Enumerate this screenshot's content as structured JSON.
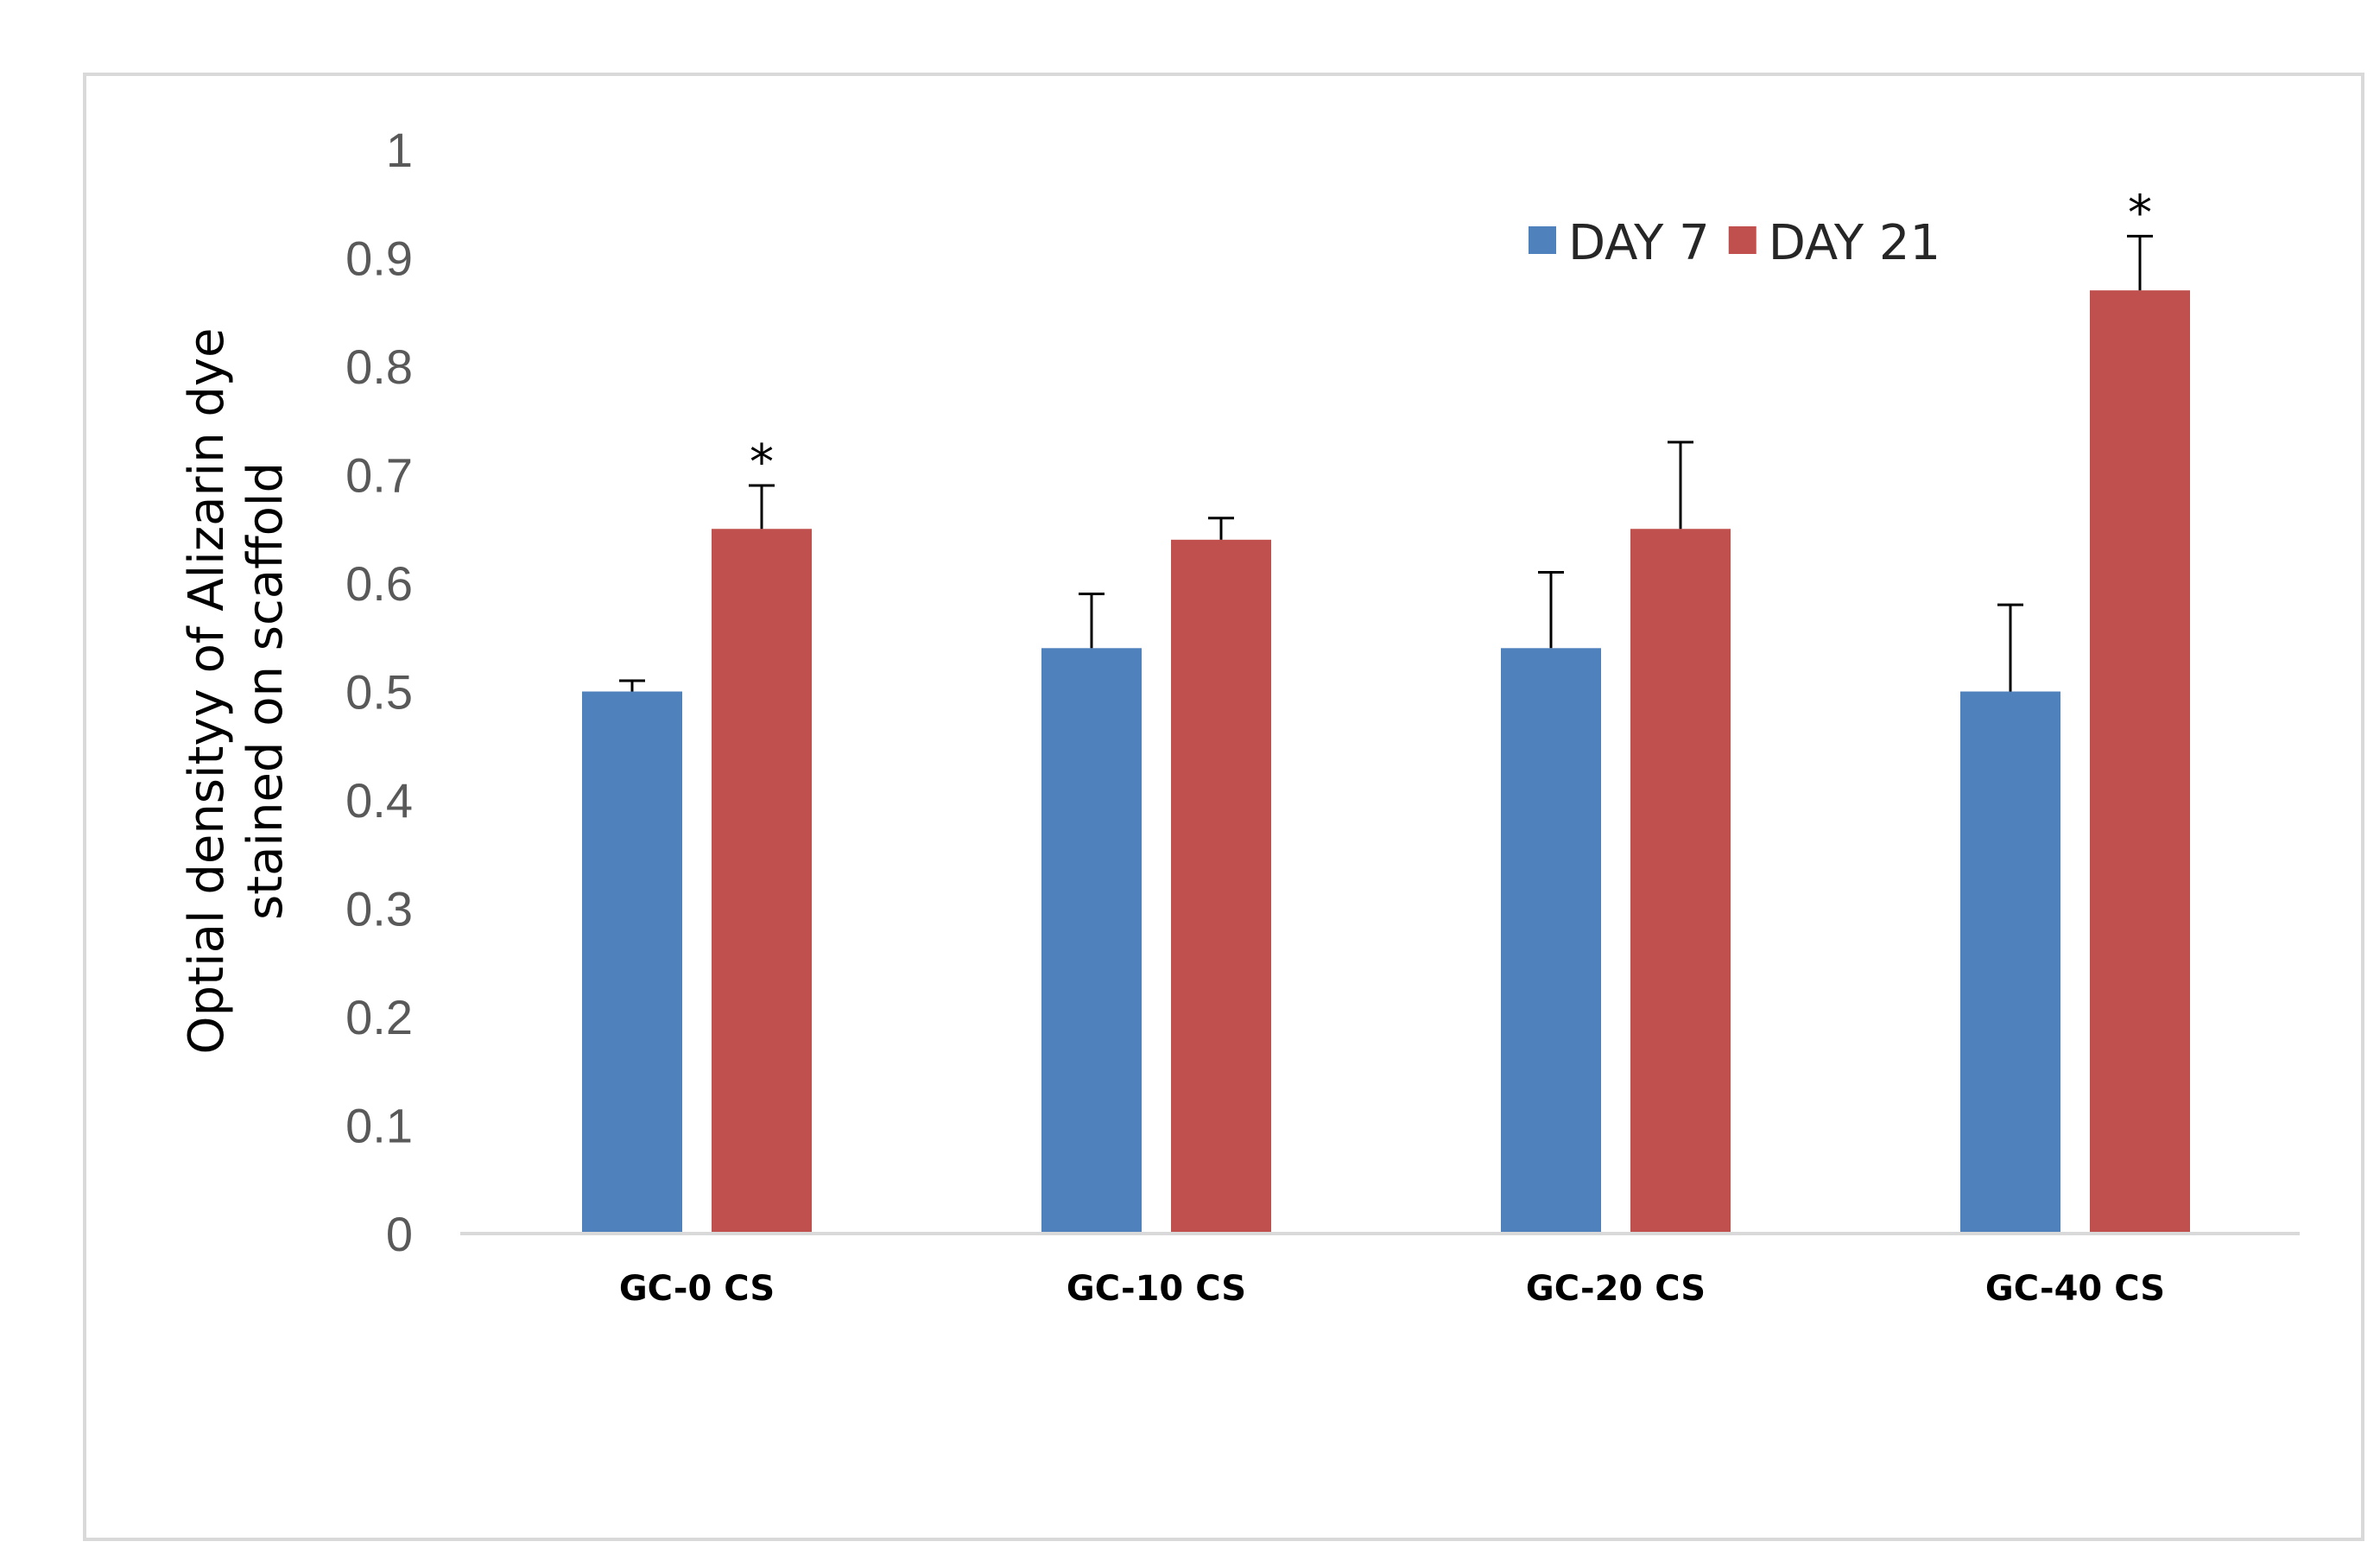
{
  "chart_data": {
    "type": "bar",
    "title": "",
    "xlabel": "",
    "ylabel_lines": [
      "Optial densityy of Alizarin dye",
      "stained on scaffold"
    ],
    "ylim": [
      0,
      1
    ],
    "yticks": [
      "0",
      "0.1",
      "0.2",
      "0.3",
      "0.4",
      "0.5",
      "0.6",
      "0.7",
      "0.8",
      "0.9",
      "1"
    ],
    "categories": [
      "GC-0 CS",
      "GC-10 CS",
      "GC-20 CS",
      "GC-40 CS"
    ],
    "series": [
      {
        "name": "DAY 7",
        "color": "#4f81bd",
        "values": [
          0.5,
          0.54,
          0.54,
          0.5
        ],
        "error": [
          0.01,
          0.05,
          0.07,
          0.08
        ],
        "significance": [
          "",
          "",
          "",
          ""
        ]
      },
      {
        "name": "DAY 21",
        "color": "#c0504d",
        "values": [
          0.65,
          0.64,
          0.65,
          0.87
        ],
        "error": [
          0.04,
          0.02,
          0.08,
          0.05
        ],
        "significance": [
          "*",
          "",
          "",
          "*"
        ]
      }
    ],
    "legend_position": "top-right",
    "grid": false
  }
}
